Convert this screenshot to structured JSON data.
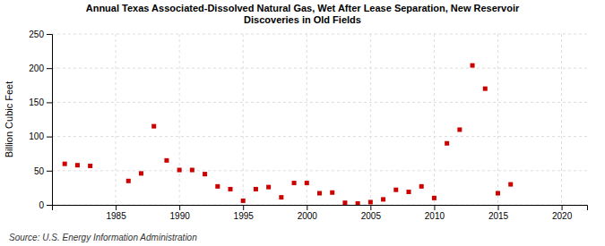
{
  "chart_data": {
    "type": "scatter",
    "title": "Annual Texas Associated-Dissolved Natural Gas, Wet After Lease Separation, New Reservoir\nDiscoveries in Old Fields",
    "ylabel": "Billion Cubic Feet",
    "annotations": [
      "Source: U.S. Energy Information Administration"
    ],
    "x": [
      1981,
      1982,
      1983,
      1986,
      1987,
      1988,
      1989,
      1990,
      1991,
      1992,
      1993,
      1994,
      1995,
      1996,
      1997,
      1998,
      1999,
      2000,
      2001,
      2002,
      2003,
      2004,
      2005,
      2006,
      2007,
      2008,
      2009,
      2010,
      2011,
      2012,
      2013,
      2014,
      2015,
      2016
    ],
    "values": [
      60,
      58,
      57,
      35,
      46,
      115,
      65,
      51,
      51,
      45,
      27,
      23,
      6,
      23,
      26,
      11,
      32,
      32,
      17,
      18,
      3,
      2,
      4,
      8,
      22,
      19,
      27,
      10,
      90,
      110,
      204,
      170,
      17,
      30
    ],
    "color": "#cc0000",
    "marker": "square",
    "xlim": [
      1980,
      2022
    ],
    "ylim": [
      0,
      250
    ],
    "xticks": [
      1985,
      1990,
      1995,
      2000,
      2005,
      2010,
      2015,
      2020
    ],
    "yticks": [
      0,
      50,
      100,
      150,
      200,
      250
    ],
    "grid": true
  }
}
